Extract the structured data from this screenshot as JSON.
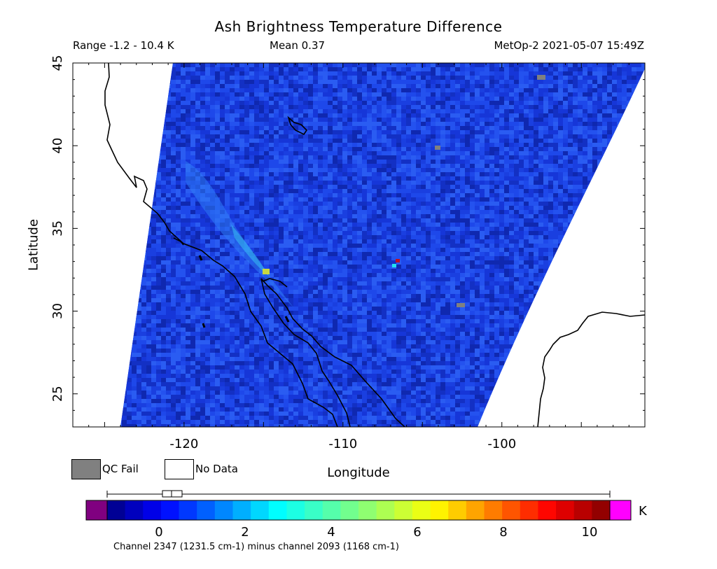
{
  "title": "Ash Brightness Temperature Difference",
  "subtitle": {
    "range": "Range -1.2 - 10.4 K",
    "mean": "Mean 0.37",
    "satellite_time": "MetOp-2 2021-05-07 15:49Z"
  },
  "map": {
    "xlabel": "Longitude",
    "ylabel": "Latitude",
    "lon_range": [
      -127,
      -91
    ],
    "lat_range": [
      23,
      45
    ],
    "x_ticks": [
      "-120",
      "-110",
      "-100"
    ],
    "y_ticks": [
      "25",
      "30",
      "35",
      "40",
      "45"
    ],
    "background_color": "#1a3fe0"
  },
  "legend": {
    "qc_fail": "QC Fail",
    "no_data": "No Data",
    "qc_fail_color": "#808080",
    "no_data_color": "#ffffff"
  },
  "colorbar": {
    "unit": "K",
    "ticks": [
      "0",
      "2",
      "4",
      "6",
      "8",
      "10"
    ],
    "range_min": -1.2,
    "range_max": 10.4,
    "mean": 0.37,
    "under_color": "#800080",
    "over_color": "#ff00ff",
    "channel_note": "Channel 2347 (1231.5 cm-1) minus channel 2093 (1168 cm-1)"
  }
}
